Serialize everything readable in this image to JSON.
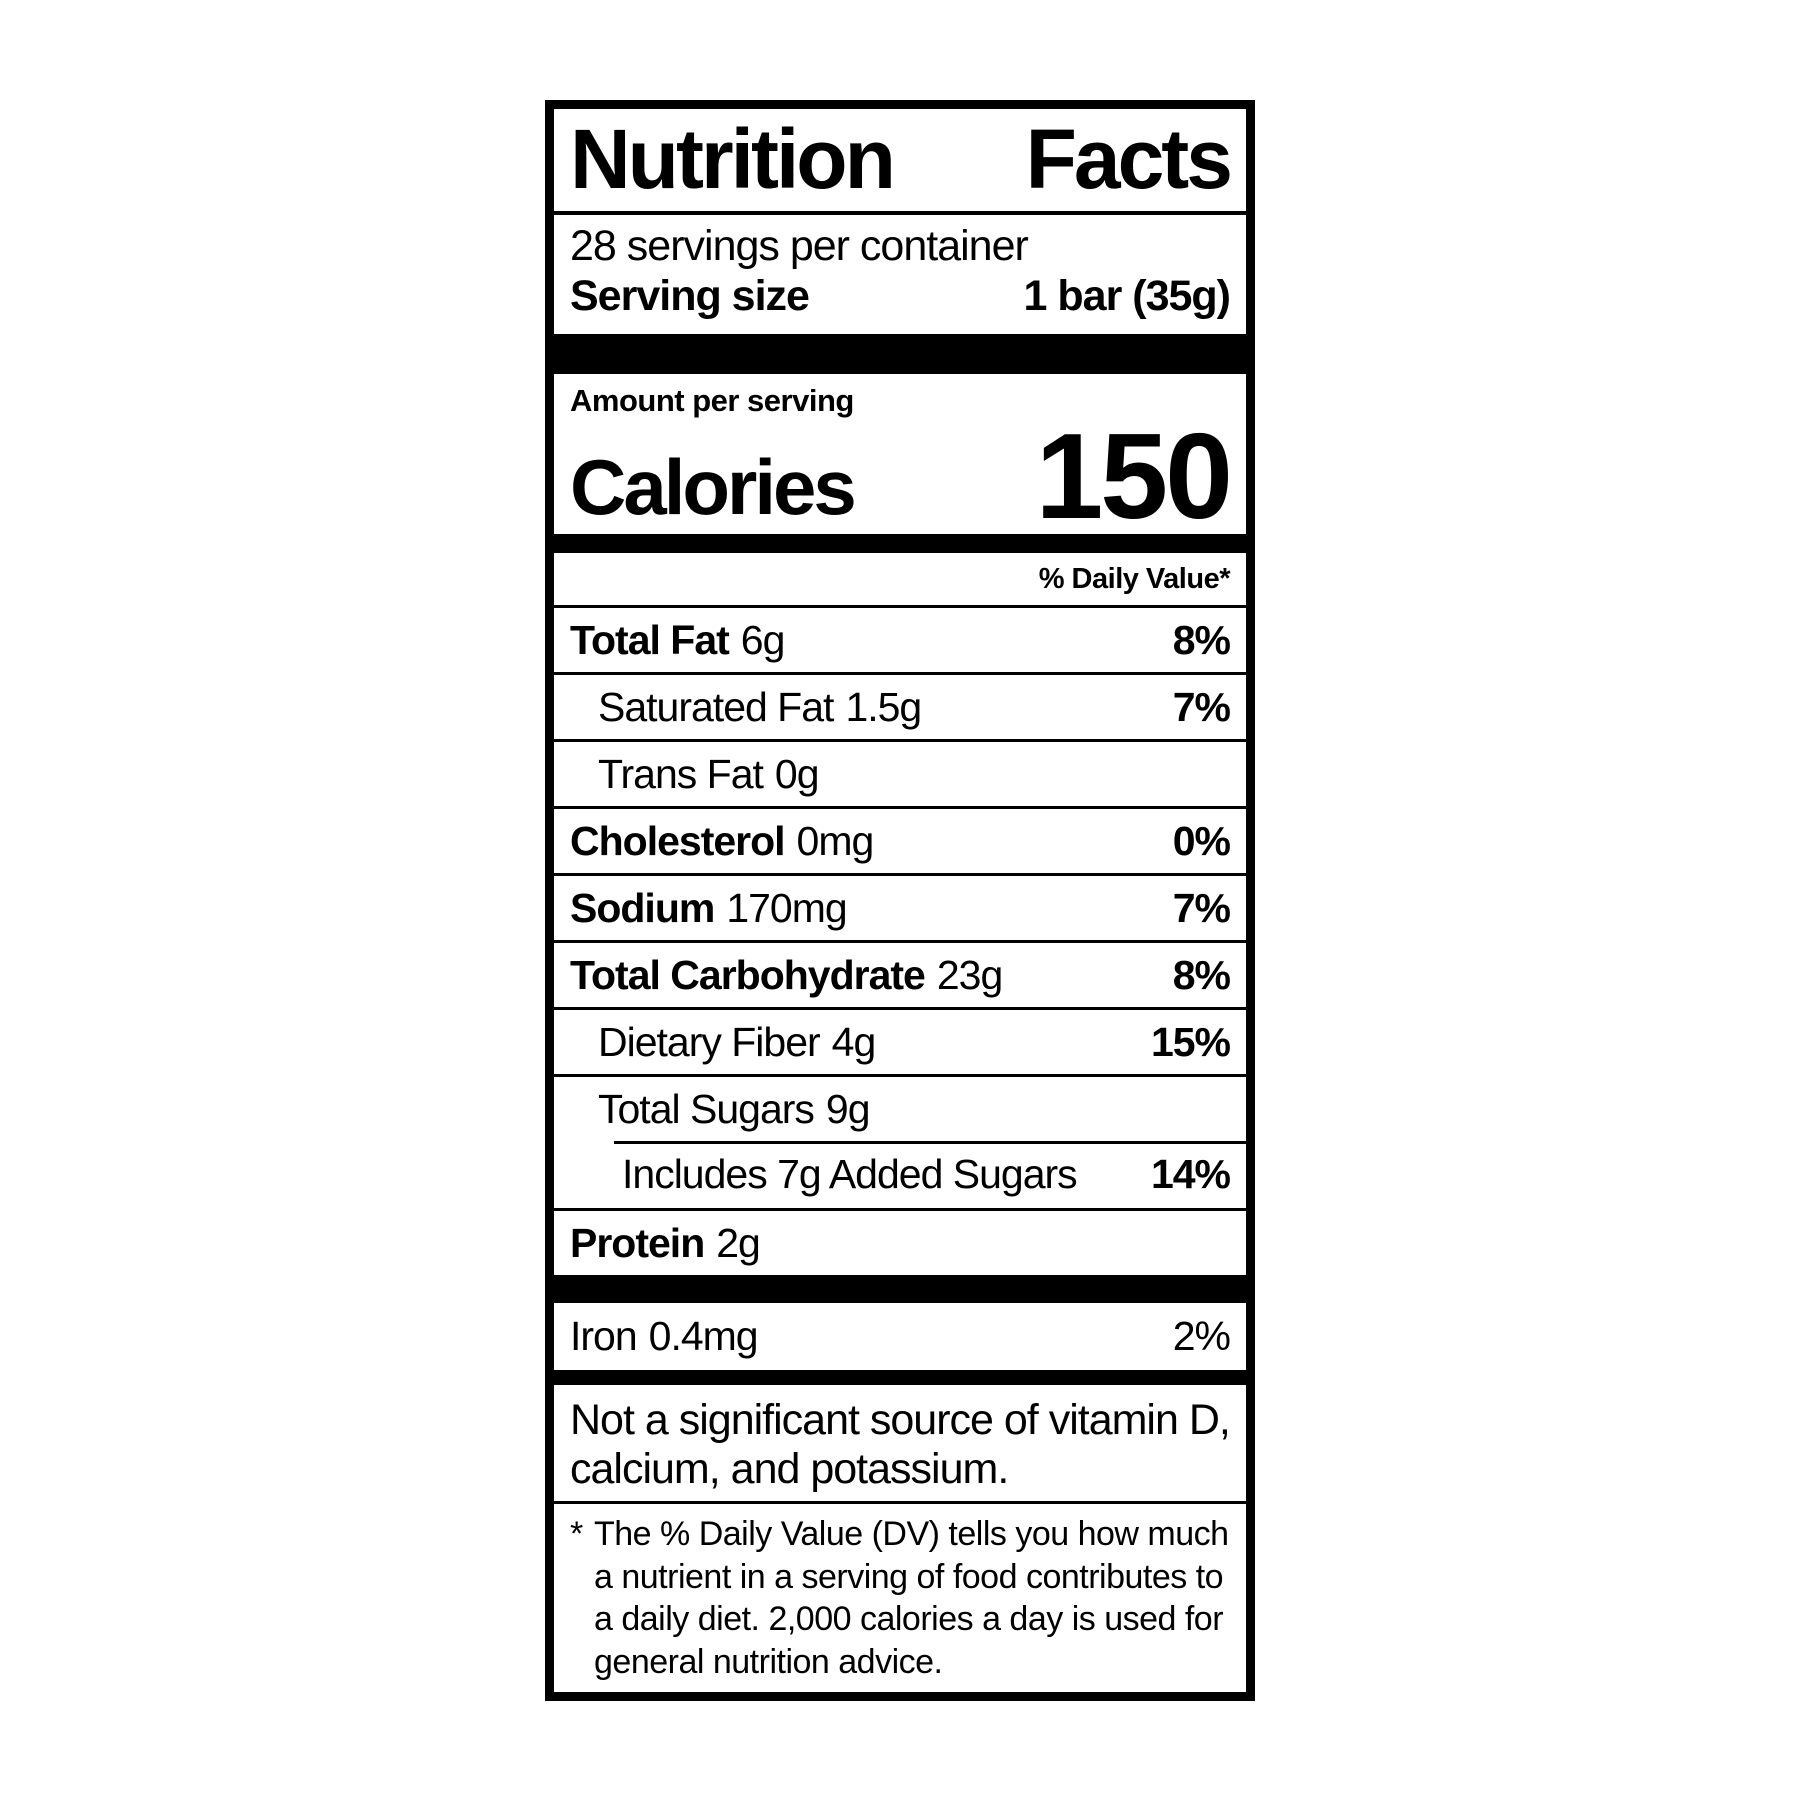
{
  "colors": {
    "ink": "#000000",
    "background": "#ffffff"
  },
  "label": {
    "title_word1": "Nutrition",
    "title_word2": "Facts",
    "servings_per_container": "28 servings per container",
    "serving_size_label": "Serving size",
    "serving_size_value": "1 bar (35g)",
    "amount_per_serving": "Amount per serving",
    "calories_label": "Calories",
    "calories_value": "150",
    "daily_value_header": "% Daily Value*",
    "rows": [
      {
        "name": "Total Fat",
        "amount": "6g",
        "dv": "8%"
      },
      {
        "name": "Saturated Fat",
        "amount": "1.5g",
        "dv": "7%"
      },
      {
        "name": "Trans Fat",
        "amount": "0g",
        "dv": ""
      },
      {
        "name": "Cholesterol",
        "amount": "0mg",
        "dv": "0%"
      },
      {
        "name": "Sodium",
        "amount": "170mg",
        "dv": "7%"
      },
      {
        "name": "Total Carbohydrate",
        "amount": "23g",
        "dv": "8%"
      },
      {
        "name": "Dietary Fiber",
        "amount": "4g",
        "dv": "15%"
      },
      {
        "name": "Total Sugars",
        "amount": "9g",
        "dv": ""
      },
      {
        "name": "Includes 7g Added Sugars",
        "amount": "",
        "dv": "14%"
      },
      {
        "name": "Protein",
        "amount": "2g",
        "dv": ""
      }
    ],
    "micronutrients": [
      {
        "name": "Iron",
        "amount": "0.4mg",
        "dv": "2%"
      }
    ],
    "not_significant_note": "Not a significant source of vitamin D, calcium, and potassium.",
    "footnote_marker": "*",
    "footnote_text": "The % Daily Value (DV) tells you how much a nutrient in a serving of food contributes to a daily diet. 2,000 calories a day is used for general nutrition advice."
  }
}
